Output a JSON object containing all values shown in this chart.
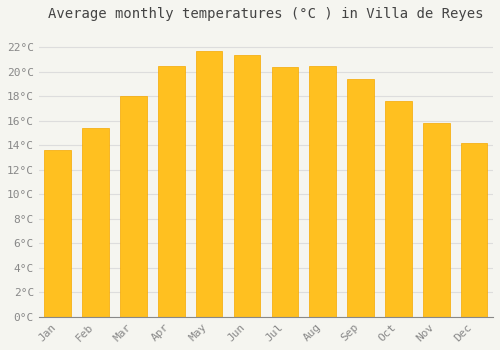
{
  "title": "Average monthly temperatures (°C ) in Villa de Reyes",
  "months": [
    "Jan",
    "Feb",
    "Mar",
    "Apr",
    "May",
    "Jun",
    "Jul",
    "Aug",
    "Sep",
    "Oct",
    "Nov",
    "Dec"
  ],
  "values": [
    13.6,
    15.4,
    18.0,
    20.5,
    21.7,
    21.4,
    20.4,
    20.5,
    19.4,
    17.6,
    15.8,
    14.2
  ],
  "bar_color_face": "#FFC020",
  "bar_color_edge": "#F5A800",
  "background_color": "#F5F5F0",
  "plot_bg_color": "#F5F5F0",
  "grid_color": "#DDDDDD",
  "ytick_labels": [
    "0°C",
    "2°C",
    "4°C",
    "6°C",
    "8°C",
    "10°C",
    "12°C",
    "14°C",
    "16°C",
    "18°C",
    "20°C",
    "22°C"
  ],
  "ytick_values": [
    0,
    2,
    4,
    6,
    8,
    10,
    12,
    14,
    16,
    18,
    20,
    22
  ],
  "ylim": [
    0,
    23.5
  ],
  "title_fontsize": 10,
  "tick_fontsize": 8,
  "tick_color": "#888888",
  "font_family": "monospace",
  "bar_width": 0.7
}
